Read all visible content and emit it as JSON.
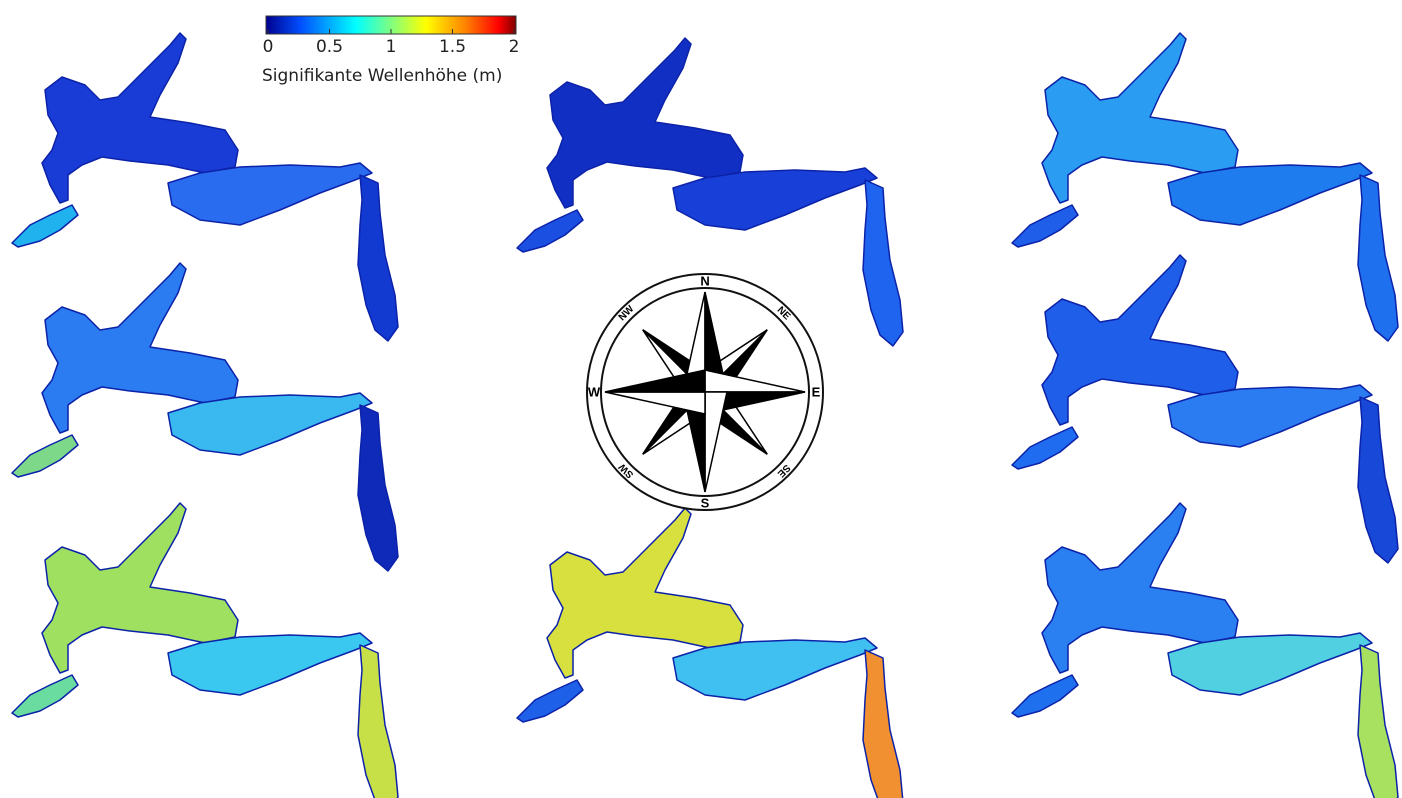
{
  "colorbar": {
    "title": "Signifikante Wellenhöhe (m)",
    "ticks": [
      "0",
      "0.5",
      "1",
      "1.5",
      "2"
    ],
    "range": [
      0,
      2
    ],
    "colormap": [
      "#00008f",
      "#0050ff",
      "#00ffff",
      "#80ff80",
      "#ffff00",
      "#ff8000",
      "#ff0000",
      "#800000"
    ]
  },
  "compass": {
    "labels": [
      "N",
      "NE",
      "E",
      "SE",
      "S",
      "SW",
      "W",
      "NW"
    ]
  },
  "maps": [
    {
      "wind_from": "NW",
      "colors": [
        "#1a3cd6",
        "#2a6cf0",
        "#1fb2ee",
        "#123ad0"
      ]
    },
    {
      "wind_from": "N",
      "colors": [
        "#122fc4",
        "#1840d8",
        "#1a4fe2",
        "#1e64ee"
      ]
    },
    {
      "wind_from": "NE",
      "colors": [
        "#2a9cf2",
        "#1e7cee",
        "#1e5ee8",
        "#1f70ef"
      ]
    },
    {
      "wind_from": "W",
      "colors": [
        "#2a7cf0",
        "#3ab8f0",
        "#7ed88a",
        "#0f2ab8"
      ]
    },
    {
      "wind_from": "E",
      "colors": [
        "#1e5ee8",
        "#2a7cf0",
        "#1f6cf0",
        "#1848d8"
      ]
    },
    {
      "wind_from": "SW",
      "colors": [
        "#a0e060",
        "#3ac8f0",
        "#6adca0",
        "#c8e048"
      ]
    },
    {
      "wind_from": "S",
      "colors": [
        "#d8e040",
        "#40c0f0",
        "#1f60e8",
        "#f09030"
      ]
    },
    {
      "wind_from": "SE",
      "colors": [
        "#2a80f0",
        "#50d0e0",
        "#1f70ef",
        "#a8e060"
      ]
    }
  ]
}
